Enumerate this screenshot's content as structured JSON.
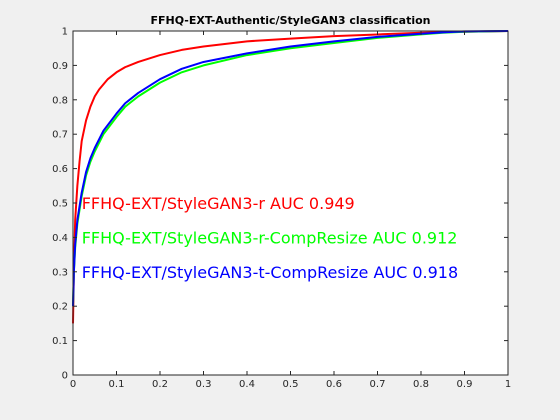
{
  "chart_data": {
    "type": "line",
    "title": "FFHQ-EXT-Authentic/StyleGAN3 classification",
    "xlabel": "",
    "ylabel": "",
    "xlim": [
      0,
      1
    ],
    "ylim": [
      0,
      1
    ],
    "xticks": [
      0,
      0.1,
      0.2,
      0.3,
      0.4,
      0.5,
      0.6,
      0.7,
      0.8,
      0.9,
      1
    ],
    "xtick_labels": [
      "0",
      "0.1",
      "0.2",
      "0.3",
      "0.4",
      "0.5",
      "0.6",
      "0.7",
      "0.8",
      "0.9",
      "1"
    ],
    "yticks": [
      0,
      0.1,
      0.2,
      0.3,
      0.4,
      0.5,
      0.6,
      0.7,
      0.8,
      0.9,
      1
    ],
    "ytick_labels": [
      "0",
      "0.1",
      "0.2",
      "0.3",
      "0.4",
      "0.5",
      "0.6",
      "0.7",
      "0.8",
      "0.9",
      "1"
    ],
    "grid": false,
    "series": [
      {
        "name": "FFHQ-EXT/StyleGAN3-r AUC 0.949",
        "color": "#ff0000",
        "x": [
          0,
          0.002,
          0.005,
          0.01,
          0.015,
          0.02,
          0.03,
          0.04,
          0.05,
          0.06,
          0.08,
          0.1,
          0.12,
          0.15,
          0.2,
          0.25,
          0.3,
          0.4,
          0.5,
          0.6,
          0.7,
          0.8,
          0.9,
          0.95,
          1
        ],
        "y": [
          0.15,
          0.3,
          0.45,
          0.55,
          0.62,
          0.68,
          0.74,
          0.78,
          0.81,
          0.83,
          0.86,
          0.88,
          0.895,
          0.91,
          0.93,
          0.945,
          0.955,
          0.97,
          0.978,
          0.985,
          0.99,
          0.995,
          0.998,
          0.999,
          1
        ]
      },
      {
        "name": "FFHQ-EXT/StyleGAN3-r-CompResize AUC 0.912",
        "color": "#00ff00",
        "x": [
          0,
          0.002,
          0.005,
          0.01,
          0.02,
          0.03,
          0.04,
          0.05,
          0.07,
          0.1,
          0.12,
          0.15,
          0.2,
          0.25,
          0.3,
          0.4,
          0.5,
          0.6,
          0.7,
          0.8,
          0.85,
          0.9,
          1
        ],
        "y": [
          0.2,
          0.3,
          0.37,
          0.44,
          0.52,
          0.58,
          0.62,
          0.65,
          0.7,
          0.75,
          0.78,
          0.81,
          0.85,
          0.88,
          0.9,
          0.93,
          0.95,
          0.965,
          0.98,
          0.99,
          0.995,
          0.998,
          1
        ]
      },
      {
        "name": "FFHQ-EXT/StyleGAN3-t-CompResize AUC 0.918",
        "color": "#0000ff",
        "x": [
          0,
          0.002,
          0.005,
          0.01,
          0.02,
          0.03,
          0.04,
          0.05,
          0.07,
          0.1,
          0.12,
          0.15,
          0.2,
          0.25,
          0.3,
          0.4,
          0.5,
          0.6,
          0.7,
          0.8,
          0.85,
          0.9,
          1
        ],
        "y": [
          0.2,
          0.3,
          0.38,
          0.45,
          0.53,
          0.59,
          0.63,
          0.66,
          0.71,
          0.76,
          0.79,
          0.82,
          0.86,
          0.89,
          0.91,
          0.935,
          0.955,
          0.97,
          0.983,
          0.992,
          0.996,
          0.999,
          1
        ]
      }
    ]
  }
}
